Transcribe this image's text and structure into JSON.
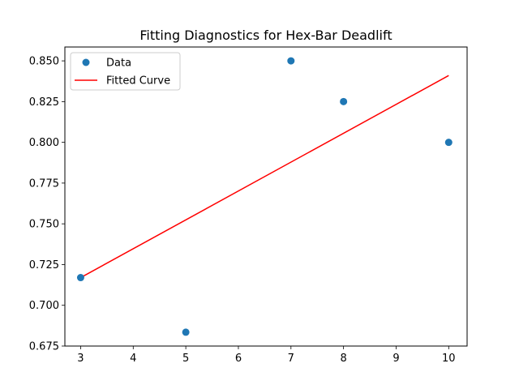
{
  "chart_data": {
    "type": "scatter",
    "title": "Fitting Diagnostics for Hex-Bar Deadlift",
    "xlabel": "",
    "ylabel": "",
    "xlim": [
      2.7,
      10.35
    ],
    "ylim": [
      0.675,
      0.8585
    ],
    "x_ticks": [
      3,
      4,
      5,
      6,
      7,
      8,
      9,
      10
    ],
    "y_ticks": [
      0.675,
      0.7,
      0.725,
      0.75,
      0.775,
      0.8,
      0.825,
      0.85
    ],
    "y_tick_labels": [
      "0.675",
      "0.700",
      "0.725",
      "0.750",
      "0.775",
      "0.800",
      "0.825",
      "0.850"
    ],
    "grid": false,
    "legend_position": "upper-left",
    "series": [
      {
        "name": "Data",
        "kind": "scatter",
        "color": "#1f77b4",
        "x": [
          3,
          5,
          7,
          8,
          10
        ],
        "y": [
          0.717,
          0.6835,
          0.85,
          0.825,
          0.8
        ]
      },
      {
        "name": "Fitted Curve",
        "kind": "line",
        "color": "#ff0000",
        "x": [
          3,
          10
        ],
        "y": [
          0.717,
          0.841
        ]
      }
    ]
  }
}
